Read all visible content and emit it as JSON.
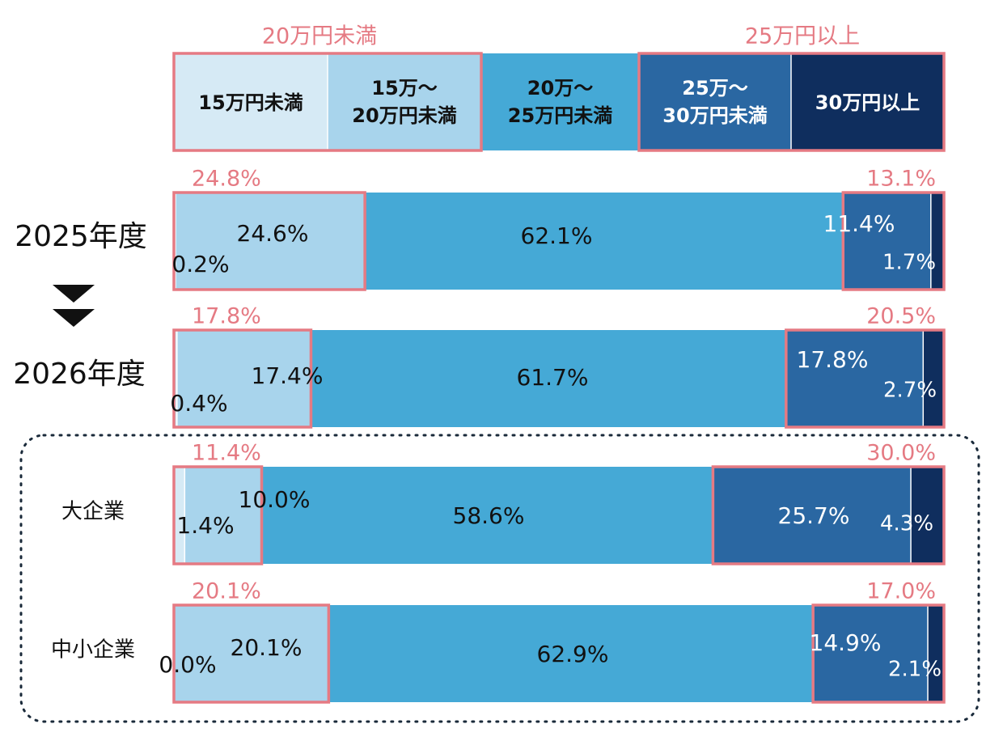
{
  "chart_data": {
    "type": "stacked-bar-horizontal",
    "legend": {
      "group_low_label": "20万円未満",
      "group_high_label": "25万円以上",
      "segments": [
        {
          "lines": [
            "15万円未満"
          ]
        },
        {
          "lines": [
            "15万～",
            "20万円未満"
          ]
        },
        {
          "lines": [
            "20万～",
            "25万円未満"
          ]
        },
        {
          "lines": [
            "25万～",
            "30万円未満"
          ]
        },
        {
          "lines": [
            "30万円以上"
          ]
        }
      ]
    },
    "colors": [
      "#d6eaf5",
      "#a8d4ec",
      "#45a9d6",
      "#2a67a2",
      "#0f2e5e"
    ],
    "highlight_color": "#e57a83",
    "arrow_color": "#111111",
    "rows": [
      {
        "name": "2025年度",
        "values": [
          0.2,
          24.6,
          62.1,
          11.4,
          1.7
        ],
        "labels": [
          "0.2%",
          "24.6%",
          "62.1%",
          "11.4%",
          "1.7%"
        ],
        "low_total": "24.8%",
        "high_total": "13.1%"
      },
      {
        "name": "2026年度",
        "values": [
          0.4,
          17.4,
          61.7,
          17.8,
          2.7
        ],
        "labels": [
          "0.4%",
          "17.4%",
          "61.7%",
          "17.8%",
          "2.7%"
        ],
        "low_total": "17.8%",
        "high_total": "20.5%"
      },
      {
        "name": "大企業",
        "values": [
          1.4,
          10.0,
          58.6,
          25.7,
          4.3
        ],
        "labels": [
          "1.4%",
          "10.0%",
          "58.6%",
          "25.7%",
          "4.3%"
        ],
        "low_total": "11.4%",
        "high_total": "30.0%"
      },
      {
        "name": "中小企業",
        "values": [
          0.0,
          20.1,
          62.9,
          14.9,
          2.1
        ],
        "labels": [
          "0.0%",
          "20.1%",
          "62.9%",
          "14.9%",
          "2.1%"
        ],
        "low_total": "20.1%",
        "high_total": "17.0%"
      }
    ]
  }
}
